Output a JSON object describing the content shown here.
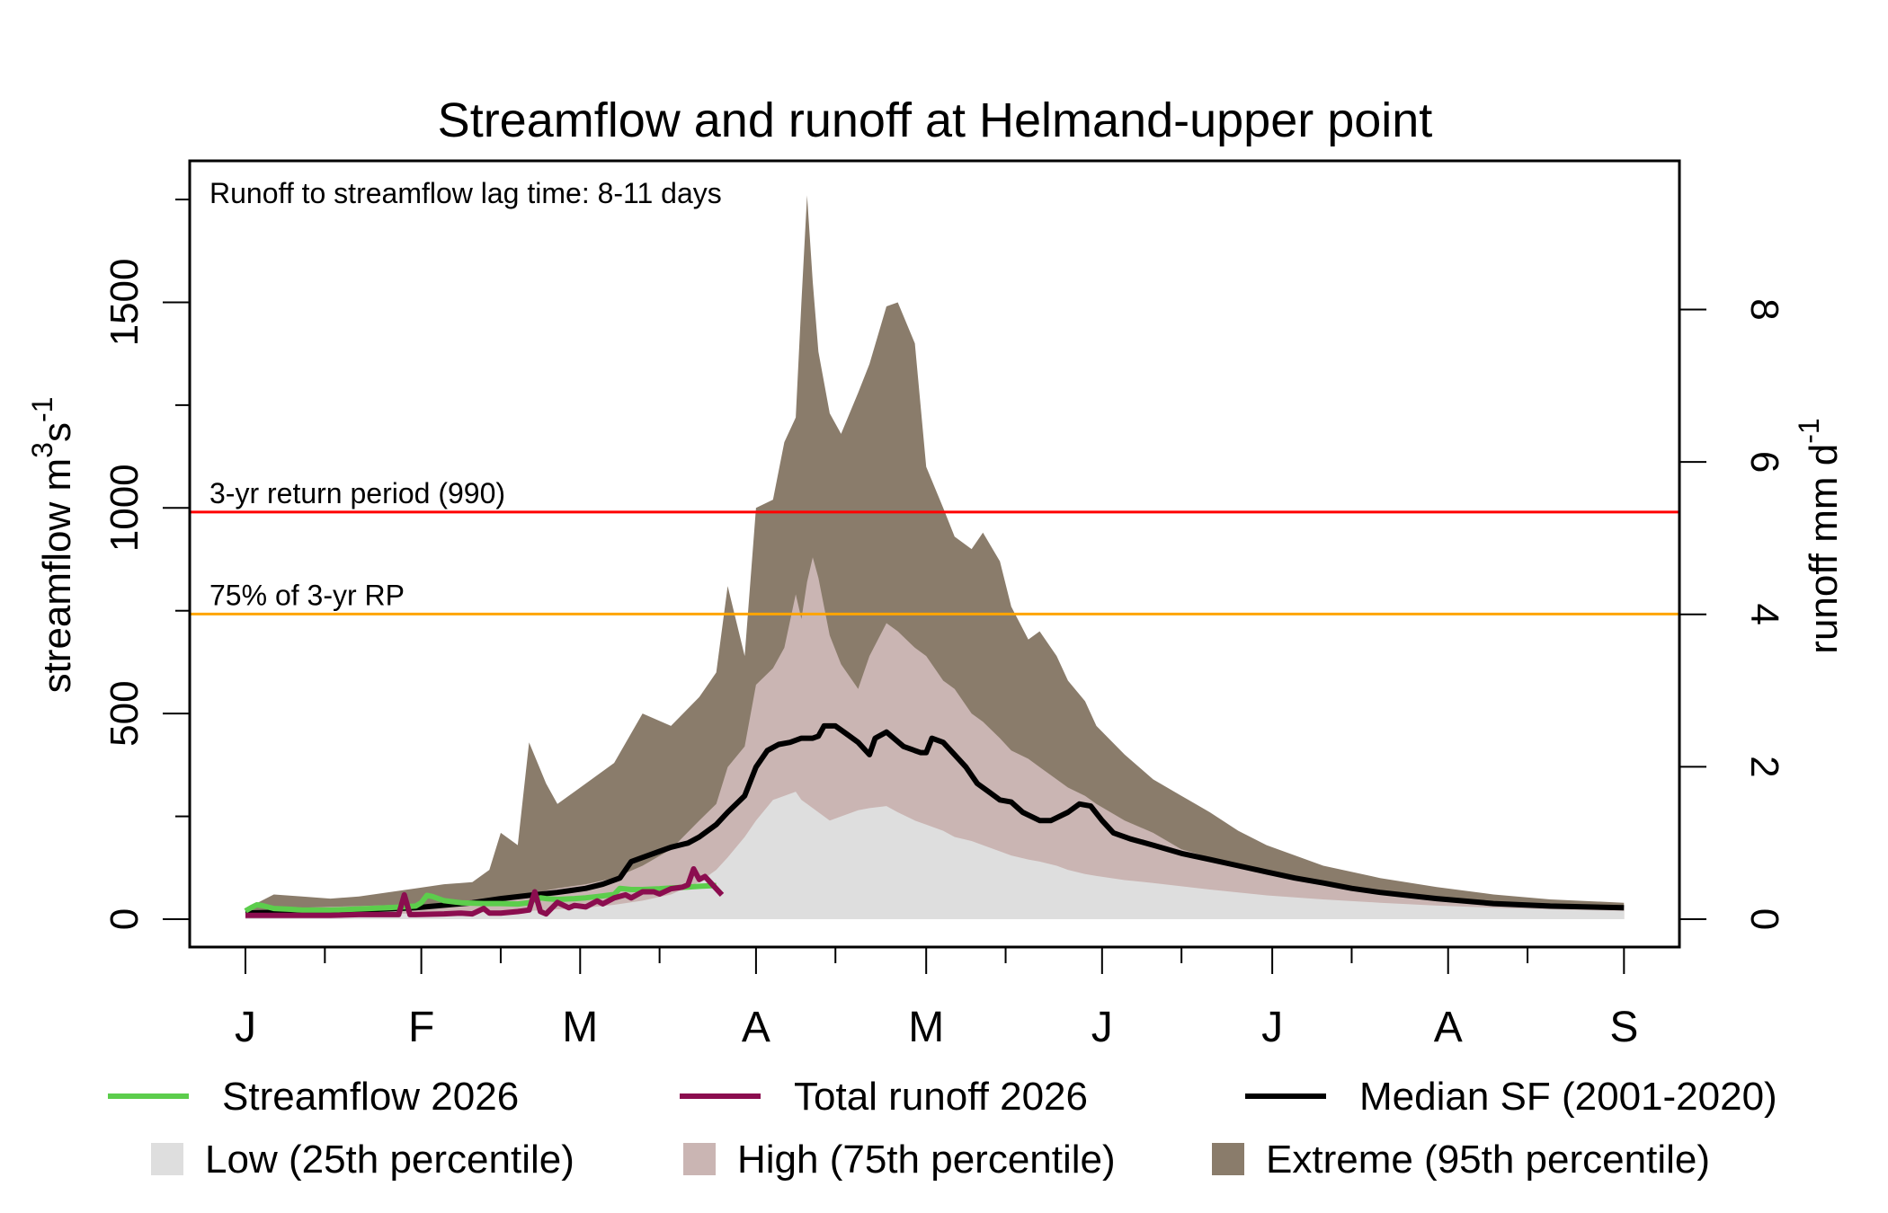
{
  "chart_data": {
    "type": "area",
    "title": "Streamflow and runoff at Helmand-upper point",
    "annotation": "Runoff to streamflow lag time: 8-11 days",
    "ylabel_left": "streamflow m",
    "ylabel_left_sup1": "3",
    "ylabel_left_s": "s",
    "ylabel_left_sup2": "-1",
    "ylabel_right": "runoff mm d",
    "ylabel_right_sup": "-1",
    "ylim_left": [
      -70,
      1800
    ],
    "ylim_right_ratio": "1 mm/d = 185 m3/s",
    "yticks_left": [
      0,
      500,
      1000,
      1500
    ],
    "yticks_left_minor": [
      250,
      750,
      1250,
      1750
    ],
    "yticks_right": [
      0,
      2,
      4,
      6,
      8
    ],
    "x_range_days": [
      -10,
      258
    ],
    "month_ticks": [
      {
        "label": "J",
        "day": 0
      },
      {
        "label": "F",
        "day": 31
      },
      {
        "label": "M",
        "day": 59
      },
      {
        "label": "A",
        "day": 90
      },
      {
        "label": "M",
        "day": 120
      },
      {
        "label": "J",
        "day": 151
      },
      {
        "label": "J",
        "day": 181
      },
      {
        "label": "A",
        "day": 212
      },
      {
        "label": "S",
        "day": 243
      }
    ],
    "mid_month_ticks": [
      14,
      45,
      73,
      104,
      134,
      165,
      195,
      226
    ],
    "reference_lines": [
      {
        "label": "3-yr return period (990)",
        "value": 990,
        "color": "#ff0000"
      },
      {
        "label": "75% of 3-yr RP",
        "value": 742,
        "color": "#ffa500"
      }
    ],
    "colors": {
      "streamflow": "#5ccd4c",
      "runoff": "#8b0d4f",
      "median": "#000000",
      "low": "#dedede",
      "high": "#cab5b3",
      "extreme": "#8a7c6b"
    },
    "bands": {
      "days": [
        0,
        5,
        10,
        15,
        20,
        25,
        30,
        35,
        40,
        43,
        45,
        48,
        50,
        53,
        55,
        60,
        65,
        70,
        75,
        80,
        83,
        85,
        88,
        90,
        93,
        95,
        97,
        98,
        99,
        100,
        101,
        103,
        105,
        108,
        110,
        113,
        115,
        118,
        120,
        123,
        125,
        128,
        130,
        133,
        135,
        138,
        140,
        143,
        145,
        148,
        150,
        155,
        160,
        165,
        170,
        175,
        180,
        190,
        200,
        210,
        220,
        230,
        243
      ],
      "extreme": [
        25,
        60,
        55,
        50,
        55,
        65,
        75,
        85,
        90,
        120,
        210,
        180,
        430,
        330,
        280,
        330,
        380,
        500,
        470,
        540,
        600,
        810,
        640,
        1000,
        1020,
        1160,
        1220,
        1500,
        1760,
        1550,
        1380,
        1230,
        1180,
        1280,
        1350,
        1490,
        1500,
        1400,
        1100,
        1000,
        930,
        900,
        940,
        870,
        760,
        680,
        700,
        640,
        580,
        530,
        470,
        400,
        340,
        300,
        260,
        215,
        180,
        130,
        100,
        78,
        60,
        48,
        40
      ],
      "high": [
        15,
        25,
        28,
        30,
        32,
        34,
        36,
        38,
        40,
        45,
        50,
        55,
        60,
        70,
        75,
        85,
        100,
        130,
        170,
        240,
        280,
        370,
        420,
        570,
        610,
        660,
        790,
        730,
        820,
        880,
        830,
        690,
        620,
        560,
        640,
        720,
        700,
        660,
        640,
        580,
        560,
        500,
        480,
        440,
        410,
        390,
        370,
        340,
        320,
        300,
        280,
        240,
        210,
        170,
        150,
        130,
        110,
        85,
        65,
        50,
        42,
        35,
        30
      ],
      "low": [
        10,
        10,
        11,
        12,
        12,
        13,
        14,
        15,
        16,
        17,
        18,
        19,
        20,
        22,
        24,
        28,
        35,
        45,
        60,
        90,
        120,
        150,
        200,
        240,
        290,
        300,
        310,
        290,
        280,
        270,
        260,
        240,
        250,
        265,
        270,
        275,
        260,
        240,
        230,
        215,
        200,
        190,
        180,
        165,
        155,
        145,
        140,
        130,
        120,
        110,
        105,
        95,
        88,
        80,
        72,
        65,
        58,
        48,
        40,
        33,
        28,
        24,
        20
      ]
    },
    "median": {
      "days": [
        0,
        10,
        20,
        30,
        40,
        45,
        50,
        55,
        60,
        63,
        66,
        68,
        70,
        73,
        75,
        78,
        80,
        83,
        85,
        88,
        90,
        92,
        94,
        96,
        98,
        100,
        101,
        102,
        104,
        106,
        108,
        110,
        111,
        113,
        116,
        119,
        120,
        121,
        123,
        125,
        127,
        129,
        131,
        133,
        135,
        137,
        140,
        142,
        145,
        147,
        149,
        151,
        153,
        156,
        160,
        165,
        170,
        175,
        180,
        185,
        190,
        195,
        200,
        210,
        220,
        230,
        243
      ],
      "values": [
        15,
        18,
        22,
        28,
        40,
        50,
        58,
        65,
        75,
        85,
        100,
        140,
        150,
        165,
        175,
        185,
        200,
        230,
        260,
        300,
        370,
        410,
        425,
        430,
        440,
        440,
        445,
        470,
        470,
        450,
        430,
        400,
        440,
        455,
        420,
        405,
        405,
        440,
        430,
        400,
        370,
        330,
        310,
        290,
        285,
        260,
        240,
        240,
        260,
        280,
        275,
        240,
        210,
        195,
        180,
        160,
        145,
        130,
        115,
        100,
        88,
        75,
        65,
        50,
        38,
        32,
        28
      ]
    },
    "streamflow_2026": {
      "days": [
        0,
        1,
        2,
        3,
        5,
        8,
        10,
        15,
        20,
        25,
        28,
        30,
        31,
        32,
        33,
        35,
        38,
        42,
        45,
        48,
        50,
        51,
        52,
        53,
        55,
        58,
        60,
        62,
        65,
        66,
        68,
        70,
        73,
        75,
        78,
        80,
        83
      ],
      "values": [
        20,
        28,
        35,
        33,
        26,
        24,
        22,
        22,
        25,
        28,
        30,
        32,
        40,
        58,
        55,
        45,
        40,
        38,
        38,
        37,
        40,
        48,
        52,
        50,
        48,
        50,
        52,
        55,
        60,
        75,
        72,
        72,
        74,
        76,
        78,
        80,
        82
      ]
    },
    "runoff_2026": {
      "days": [
        0,
        5,
        10,
        15,
        20,
        25,
        27,
        28,
        29,
        30,
        35,
        38,
        40,
        42,
        43,
        45,
        48,
        50,
        51,
        52,
        53,
        55,
        57,
        58,
        60,
        62,
        63,
        65,
        67,
        68,
        70,
        72,
        73,
        75,
        77,
        78,
        79,
        80,
        81,
        82,
        84
      ],
      "values": [
        0.05,
        0.05,
        0.05,
        0.05,
        0.06,
        0.06,
        0.06,
        0.32,
        0.06,
        0.06,
        0.07,
        0.08,
        0.07,
        0.14,
        0.08,
        0.08,
        0.1,
        0.12,
        0.36,
        0.1,
        0.07,
        0.22,
        0.15,
        0.18,
        0.16,
        0.24,
        0.2,
        0.28,
        0.32,
        0.28,
        0.36,
        0.36,
        0.33,
        0.4,
        0.42,
        0.45,
        0.66,
        0.52,
        0.56,
        0.48,
        0.32
      ]
    }
  },
  "legend": {
    "row1": [
      {
        "key": "streamflow",
        "label": "Streamflow 2026",
        "kind": "line"
      },
      {
        "key": "runoff",
        "label": "Total runoff 2026",
        "kind": "line"
      },
      {
        "key": "median",
        "label": "Median SF (2001-2020)",
        "kind": "line"
      }
    ],
    "row2": [
      {
        "key": "low",
        "label": "Low (25th percentile)",
        "kind": "box"
      },
      {
        "key": "high",
        "label": "High (75th percentile)",
        "kind": "box"
      },
      {
        "key": "extreme",
        "label": "Extreme (95th percentile)",
        "kind": "box"
      }
    ]
  }
}
